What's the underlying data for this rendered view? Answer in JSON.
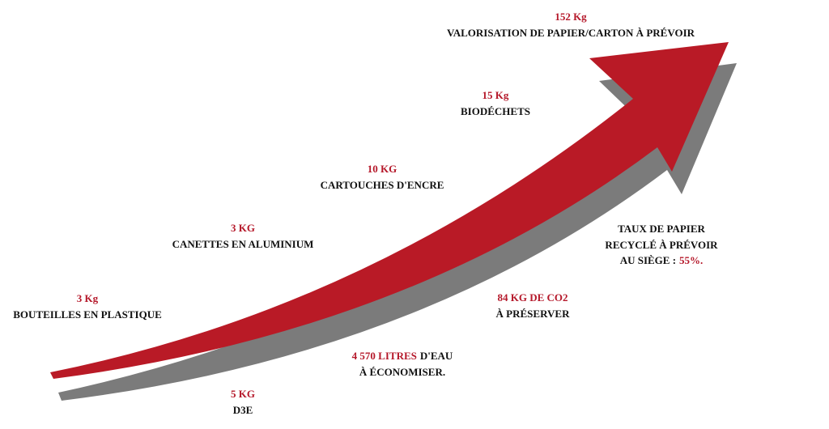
{
  "items": [
    {
      "amount": "152 Kg",
      "label": "VALORISATION DE PAPIER/CARTON À PRÉVOIR"
    },
    {
      "amount": "15 Kg",
      "label": "BIODÉCHETS"
    },
    {
      "amount": "10 KG",
      "label": "CARTOUCHES D'ENCRE"
    },
    {
      "amount": "3 KG",
      "label": "CANETTES EN ALUMINIUM"
    },
    {
      "amount": "3 Kg",
      "label": "BOUTEILLES EN PLASTIQUE"
    },
    {
      "amount": "5 KG",
      "label": "D3E"
    }
  ],
  "water": {
    "amount": "4 570 LITRES",
    "unit": "D'EAU",
    "action": "À ÉCONOMISER."
  },
  "co2": {
    "amount": "84 KG DE CO2",
    "action": "À PRÉSERVER"
  },
  "paper_rate": {
    "line1": "TAUX DE PAPIER",
    "line2": "RECYCLÉ À PRÉVOIR",
    "line3": "AU SIÈGE :",
    "value": "55%."
  }
}
